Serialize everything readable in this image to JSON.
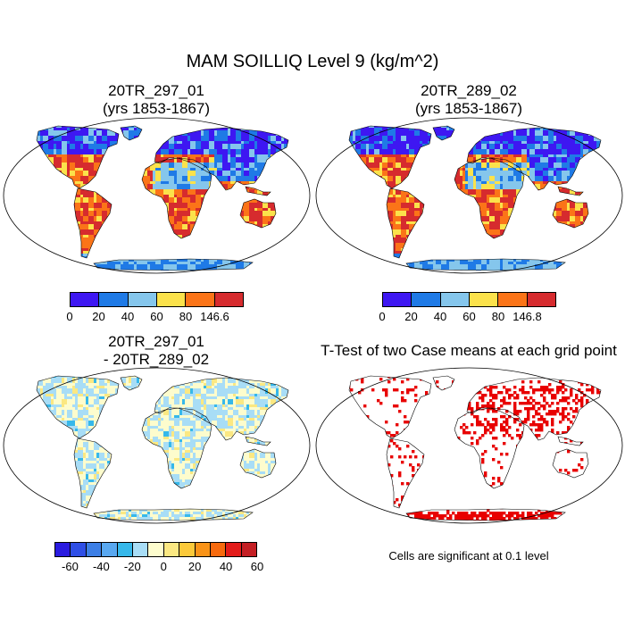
{
  "title": "MAM SOILLIQ Level 9 (kg/m^2)",
  "panels": [
    {
      "line1": "20TR_297_01",
      "line2": "(yrs 1853-1867)"
    },
    {
      "line1": "20TR_289_02",
      "line2": "(yrs 1853-1867)"
    },
    {
      "line1": "20TR_297_01",
      "line2": "- 20TR_289_02"
    },
    {
      "line1": "T-Test of two Case means at each grid point"
    }
  ],
  "legend1": {
    "colors": [
      "#3e17f2",
      "#1f7ae6",
      "#85c6ec",
      "#fbe24b",
      "#fb7418",
      "#d62b2e"
    ],
    "labels": [
      "0",
      "20",
      "40",
      "60",
      "80",
      "146.6"
    ]
  },
  "legend2": {
    "colors": [
      "#3e17f2",
      "#1f7ae6",
      "#85c6ec",
      "#fbe24b",
      "#fb7418",
      "#d62b2e"
    ],
    "labels": [
      "0",
      "20",
      "40",
      "60",
      "80",
      "146.8"
    ]
  },
  "legend3": {
    "colors": [
      "#2a1be0",
      "#2f4fe6",
      "#3d7fe6",
      "#59a8f0",
      "#36b8ea",
      "#a8ddf6",
      "#fdfccd",
      "#fbe882",
      "#fbc93a",
      "#f99318",
      "#f76a0e",
      "#e31c1a",
      "#c41f24"
    ],
    "labels": [
      "-60",
      "-40",
      "-20",
      "0",
      "20",
      "40",
      "60"
    ]
  },
  "ttest": {
    "color": "#e80000"
  },
  "note": "Cells are significant at 0.1 level"
}
